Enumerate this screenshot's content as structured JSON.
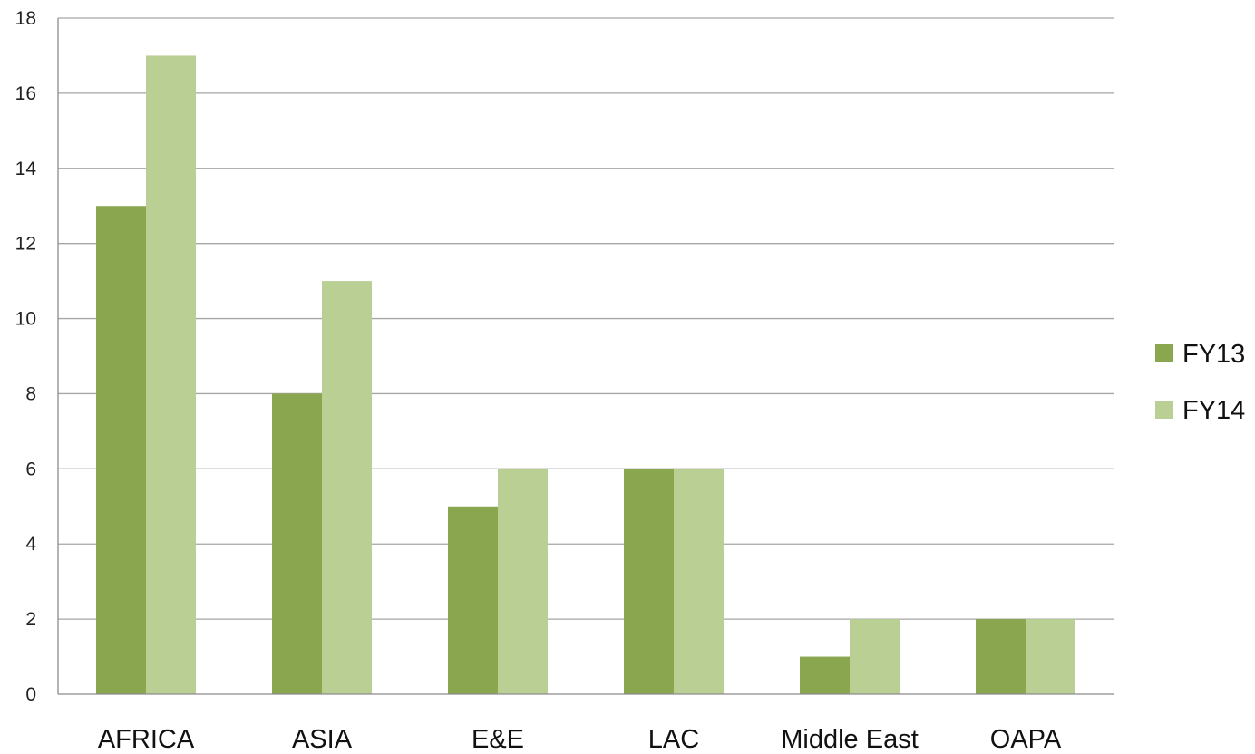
{
  "chart_data": {
    "type": "bar",
    "title": "",
    "xlabel": "",
    "ylabel": "",
    "categories": [
      "AFRICA",
      "ASIA",
      "E&E",
      "LAC",
      "Middle East",
      "OAPA"
    ],
    "series": [
      {
        "name": "FY13",
        "values": [
          13,
          8,
          5,
          6,
          1,
          2
        ],
        "color": "#8aa64e"
      },
      {
        "name": "FY14",
        "values": [
          17,
          11,
          6,
          6,
          2,
          2
        ],
        "color": "#b9cf94"
      }
    ],
    "ylim": [
      0,
      18
    ],
    "yticks": [
      "0",
      "2",
      "4",
      "6",
      "8",
      "10",
      "12",
      "14",
      "16",
      "18"
    ],
    "grid": true,
    "legend_position": "right",
    "gridline_color": "#a6a6a6",
    "axis_color": "#8c8c8c"
  }
}
